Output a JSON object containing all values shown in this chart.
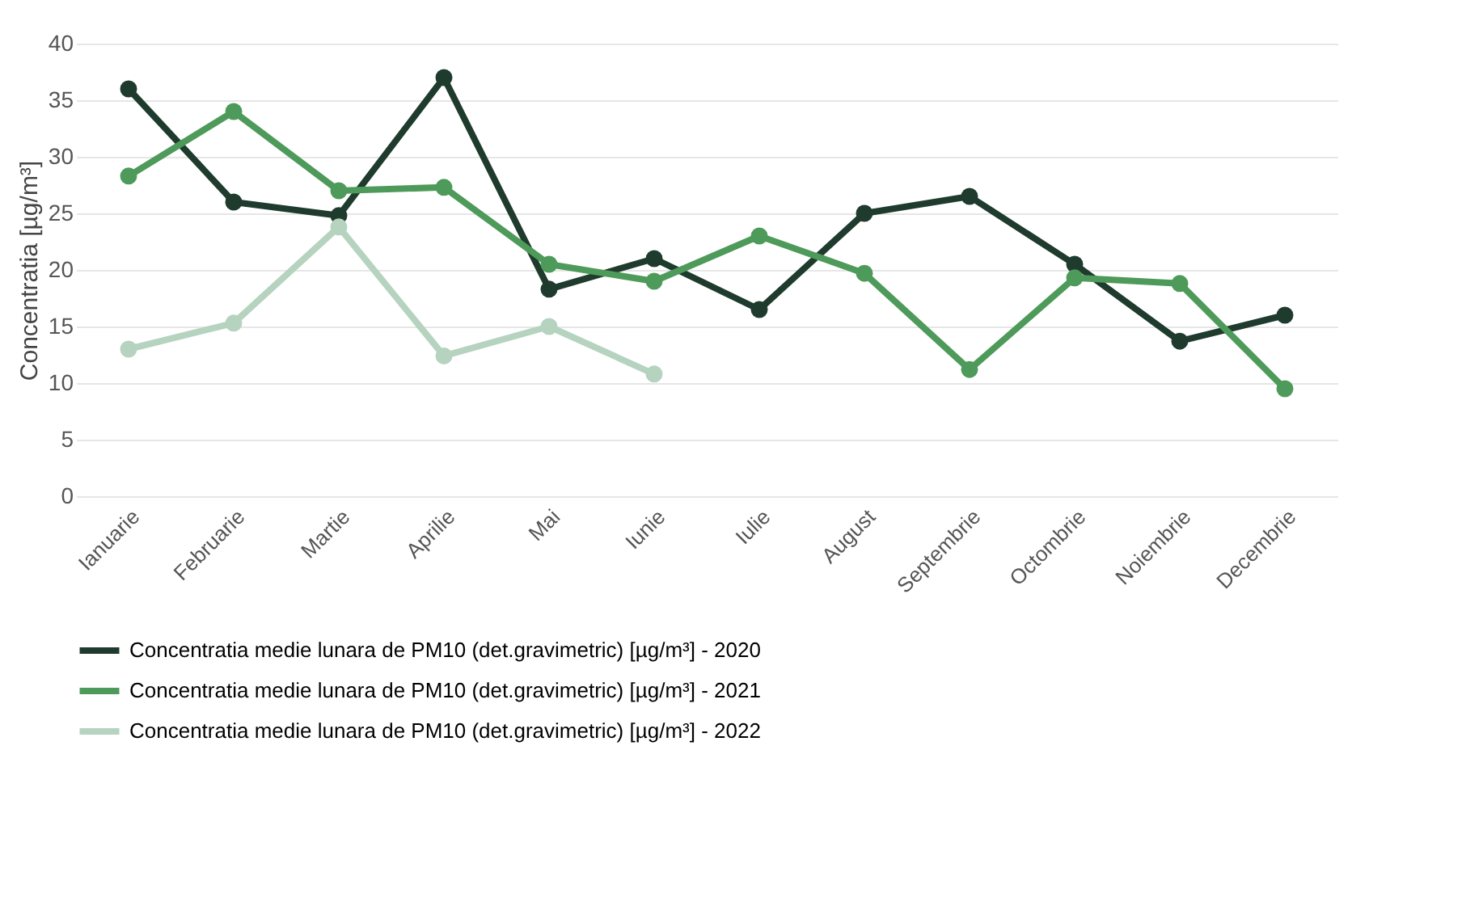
{
  "chart_data": {
    "type": "line",
    "ylabel": "Concentratia [µg/m³]",
    "categories": [
      "Ianuarie",
      "Februarie",
      "Martie",
      "Aprilie",
      "Mai",
      "Iunie",
      "Iulie",
      "August",
      "Septembrie",
      "Octombrie",
      "Noiembrie",
      "Decembrie"
    ],
    "series": [
      {
        "name": "Concentratia medie lunara de PM10 (det.gravimetric) [µg/m³] - 2020",
        "color": "#1f3b2d",
        "values": [
          36,
          26,
          24.8,
          37,
          18.3,
          21,
          16.5,
          25,
          26.5,
          20.5,
          13.7,
          16
        ]
      },
      {
        "name": "Concentratia medie lunara de PM10 (det.gravimetric) [µg/m³] - 2021",
        "color": "#4e9a5a",
        "values": [
          28.3,
          34,
          27,
          27.3,
          20.5,
          19,
          23,
          19.7,
          11.2,
          19.3,
          18.8,
          9.5
        ]
      },
      {
        "name": "Concentratia medie lunara de PM10 (det.gravimetric) [µg/m³] - 2022",
        "color": "#b5d3bf",
        "values": [
          13,
          15.3,
          23.8,
          12.4,
          15,
          10.8,
          null,
          null,
          null,
          null,
          null,
          null
        ]
      }
    ],
    "ylim": [
      0,
      40
    ],
    "yticks": [
      0,
      5,
      10,
      15,
      20,
      25,
      30,
      35,
      40
    ],
    "grid": "y",
    "legend": "bottom",
    "marker": "circle",
    "line_style": "solid"
  }
}
